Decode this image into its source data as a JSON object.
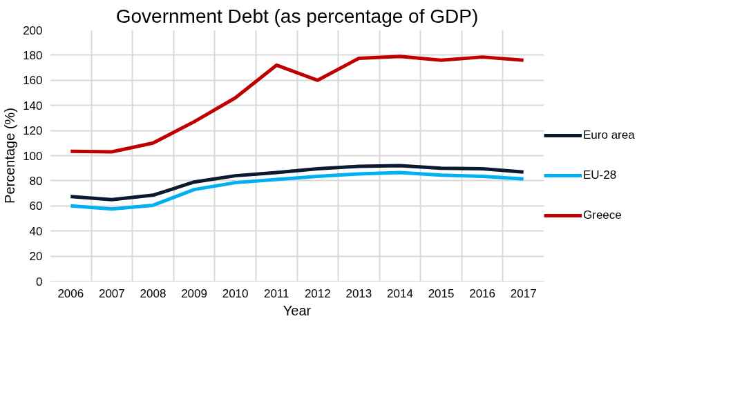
{
  "chart_data": {
    "type": "line",
    "title": "Government Debt (as percentage of GDP)",
    "xlabel": "Year",
    "ylabel": "Percentage (%)",
    "categories": [
      "2006",
      "2007",
      "2008",
      "2009",
      "2010",
      "2011",
      "2012",
      "2013",
      "2014",
      "2015",
      "2016",
      "2017"
    ],
    "series": [
      {
        "name": "Euro area",
        "color": "#0b1a2e",
        "values": [
          67.5,
          65,
          68.5,
          79,
          84,
          86.5,
          89.5,
          91.5,
          92,
          90,
          89.5,
          87
        ]
      },
      {
        "name": "EU-28",
        "color": "#00b0f0",
        "values": [
          60,
          57.5,
          60.5,
          73,
          78.5,
          81,
          83.5,
          85.5,
          86.5,
          84.5,
          83.5,
          81.5
        ]
      },
      {
        "name": "Greece",
        "color": "#c00000",
        "values": [
          103.5,
          103,
          110,
          127,
          146,
          172,
          160,
          177.5,
          179,
          176,
          178.5,
          176
        ]
      }
    ],
    "ylim": [
      0,
      200
    ],
    "yticks": [
      0,
      20,
      40,
      60,
      80,
      100,
      120,
      140,
      160,
      180,
      200
    ],
    "grid": true,
    "legend": "right",
    "marker": "none",
    "line_style": "solid"
  }
}
